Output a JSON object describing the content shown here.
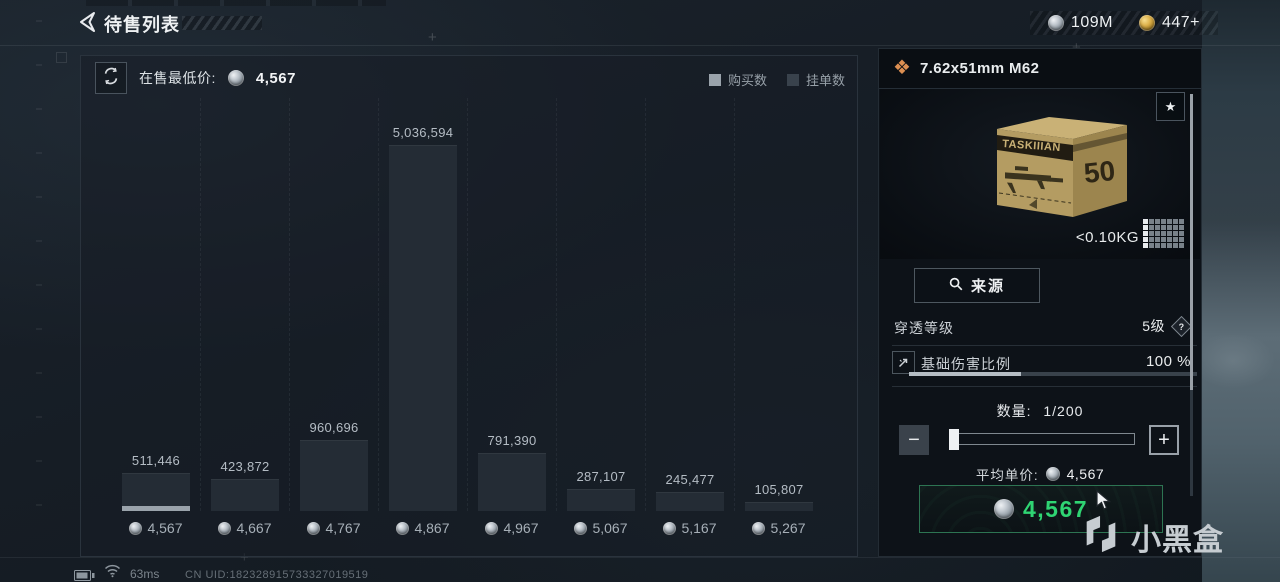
{
  "top_bar": {
    "title": "待售列表",
    "currencies": [
      {
        "icon": "silver-coin",
        "value": "109M"
      },
      {
        "icon": "gold-coin",
        "value": "447+"
      }
    ]
  },
  "market_panel": {
    "lowest_price_label": "在售最低价:",
    "lowest_price_value": "4,567",
    "legend": [
      {
        "label": "购买数",
        "swatch": "#9aa3ab"
      },
      {
        "label": "挂单数",
        "swatch": "#39424c"
      }
    ]
  },
  "chart_data": {
    "type": "bar",
    "title": "",
    "xlabel": "price per unit (silver coins)",
    "ylabel": "挂单数 (listing count)",
    "categories": [
      "4,567",
      "4,667",
      "4,767",
      "4,867",
      "4,967",
      "5,067",
      "5,167",
      "5,267"
    ],
    "series": [
      {
        "name": "挂单数",
        "values": [
          511446,
          423872,
          960696,
          5036594,
          791390,
          287107,
          245477,
          105807
        ]
      }
    ],
    "bar_value_labels": [
      "511,446",
      "423,872",
      "960,696",
      "5,036,594",
      "791,390",
      "287,107",
      "245,477",
      "105,807"
    ],
    "purchase_marker": {
      "category": "4,567",
      "note": "light 购买数 segment at base of lowest-price bar"
    },
    "ylim": [
      0,
      5036594
    ],
    "grid": "faint dashed vertical separators between price bins",
    "legend_position": "top-right"
  },
  "item_panel": {
    "title": "7.62x51mm M62",
    "rarity_icon": "orange-diamond-cluster",
    "favorite_icon": "star",
    "box_brand": "TASKIIIAN",
    "box_count": "50",
    "weight": "<0.10KG",
    "source_button_label": "来源",
    "stats": [
      {
        "label": "穿透等级",
        "value": "5级",
        "help_glyph": "?"
      },
      {
        "label": "基础伤害比例",
        "value": "100 %",
        "bar_fill_percent": 39
      }
    ],
    "quantity": {
      "label": "数量:",
      "value": "1/200",
      "minus": "−",
      "plus": "+",
      "slider_position_percent": 1
    },
    "avg_price_label": "平均单价:",
    "avg_price_value": "4,567",
    "buy_button_value": "4,567"
  },
  "status_bar": {
    "ping": "63ms",
    "uid": "CN UID:182328915733327019519"
  },
  "watermark": {
    "text": "小黑盒",
    "logo": "heybox-logo"
  },
  "colors": {
    "bar_fill": "#242c35",
    "bar_highlight": "#9aa3ab",
    "accent_orange": "#dd8f52",
    "buy_green_text": "#2fd573",
    "buy_green_border": "#2d7452",
    "panel_bg": "#0d1218"
  }
}
